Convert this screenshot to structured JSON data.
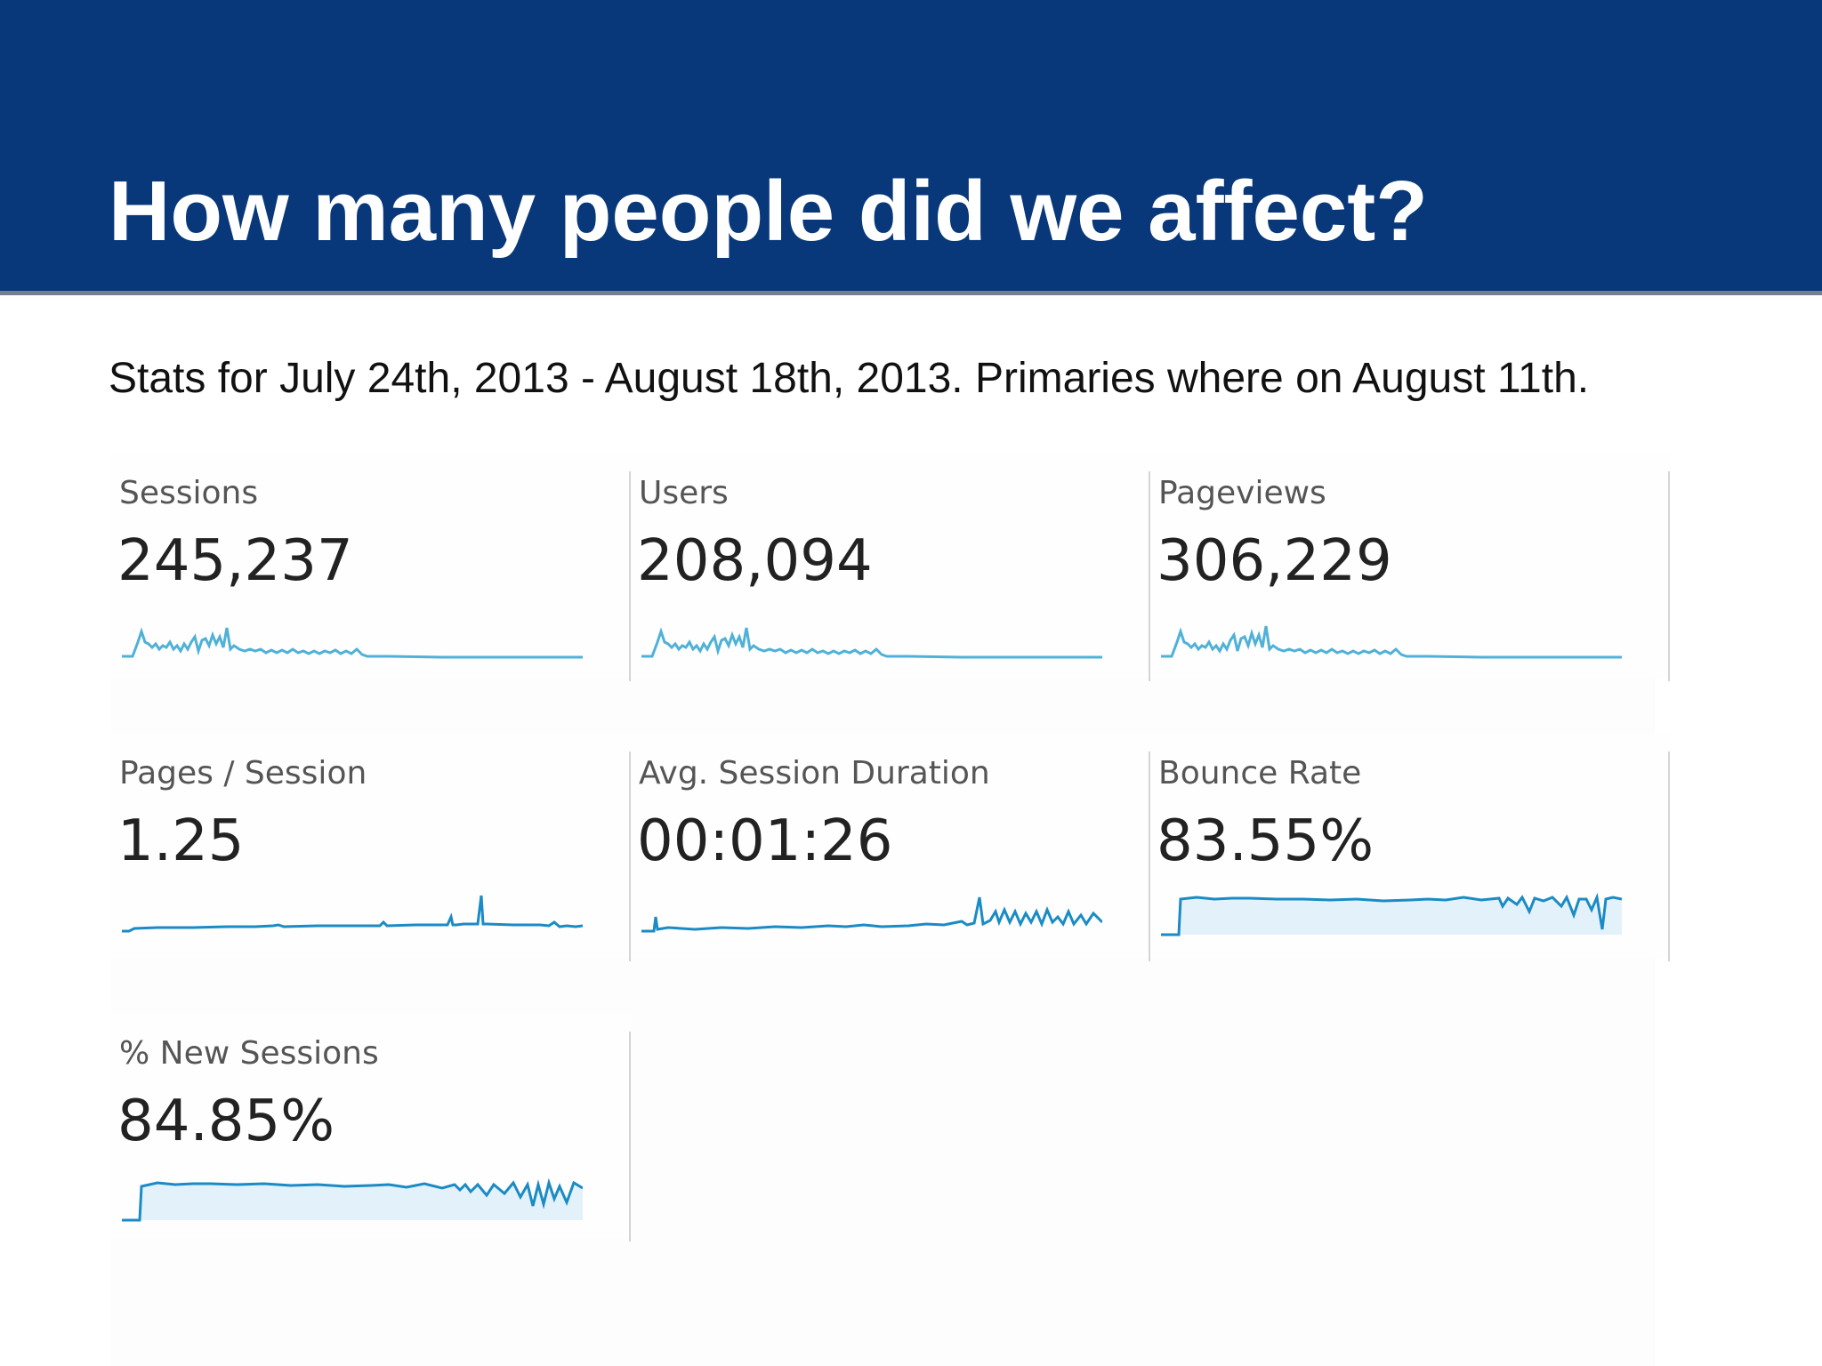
{
  "slide": {
    "title": "How many people did we affect?",
    "subtitle": "Stats for July 24th, 2013 - August 18th, 2013. Primaries where on August 11th."
  },
  "colors": {
    "header_background": "#08387a",
    "header_rule": "#76808c",
    "title_text": "#ffffff",
    "sparkline_light": "#4fb1d8",
    "sparkline_dark": "#1a8bc5",
    "sparkline_fill": "#e3f1fb"
  },
  "metrics": [
    {
      "label": "Sessions",
      "value": "245,237"
    },
    {
      "label": "Users",
      "value": "208,094"
    },
    {
      "label": "Pageviews",
      "value": "306,229"
    },
    {
      "label": "Pages / Session",
      "value": "1.25"
    },
    {
      "label": "Avg. Session Duration",
      "value": "00:01:26"
    },
    {
      "label": "Bounce Rate",
      "value": "83.55%"
    },
    {
      "label": "% New Sessions",
      "value": "84.85%"
    }
  ]
}
